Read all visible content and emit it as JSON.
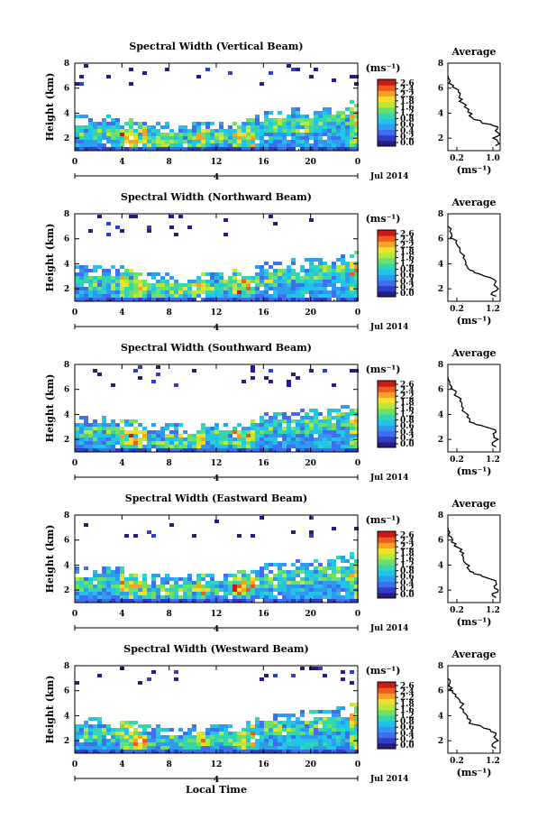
{
  "figure": {
    "panels": [
      {
        "title": "Spectral Width (Vertical Beam)",
        "avg_ticks": [
          "0.2",
          "1.0"
        ],
        "seed": 11
      },
      {
        "title": "Spectral Width (Northward Beam)",
        "avg_ticks": [
          "0.2",
          "1.2"
        ],
        "seed": 23
      },
      {
        "title": "Spectral Width (Southward Beam)",
        "avg_ticks": [
          "0.2",
          "1.2"
        ],
        "seed": 37
      },
      {
        "title": "Spectral Width (Eastward Beam)",
        "avg_ticks": [
          "0.2",
          "1.2"
        ],
        "seed": 41
      },
      {
        "title": "Spectral Width (Westward Beam)",
        "avg_ticks": [
          "0.2",
          "1.2"
        ],
        "seed": 53
      }
    ],
    "ylabel": "Height (km)",
    "y_ticks": [
      "2",
      "4",
      "6",
      "8"
    ],
    "x_ticks": [
      "0",
      "4",
      "8",
      "12",
      "16",
      "20",
      "0"
    ],
    "day_label": "4",
    "date_label": "Jul 2014",
    "xlabel": "Local Time",
    "cbar_unit": "(ms⁻¹)",
    "cbar_ticks": [
      "2.6",
      "2.4",
      "2.2",
      "1.8",
      "1.6",
      "1.2",
      "0.8",
      "0.6",
      "0.4",
      "0.2",
      "0.0"
    ],
    "avg_title": "Average",
    "avg_xlabel": "(ms⁻¹)",
    "avg_y_ticks": [
      "2",
      "4",
      "6",
      "8"
    ],
    "colors": {
      "colormap": [
        "#2a1b80",
        "#2f3fc8",
        "#3f6ef0",
        "#2f9bf0",
        "#1fc4e8",
        "#34d6b0",
        "#6ee06a",
        "#b8e83a",
        "#f2e02c",
        "#f7a225",
        "#ef5a1e",
        "#c81a16"
      ]
    }
  },
  "chart_data": [
    {
      "type": "heatmap",
      "title": "Spectral Width (Vertical Beam)",
      "xlabel": "",
      "ylabel": "Height (km)",
      "xlim": [
        0,
        24
      ],
      "ylim": [
        1,
        8
      ],
      "zlim": [
        0.0,
        2.8
      ],
      "zunit": "(ms⁻¹)",
      "echo_top_km": [
        3.5,
        3.4,
        3.6,
        3.4,
        3.2,
        3.1,
        2.9,
        2.9,
        2.8,
        2.9,
        3.0,
        3.1,
        3.1,
        3.2,
        3.3,
        3.5,
        3.9,
        4.0,
        4.1,
        4.0,
        4.3,
        4.2,
        4.5,
        4.6
      ]
    },
    {
      "type": "line",
      "title": "Average",
      "xlabel": "(ms⁻¹)",
      "x": [
        1.0,
        1.05,
        0.95,
        1.1,
        1.0,
        1.05,
        0.9,
        0.7,
        0.55,
        0.45,
        0.42,
        0.35,
        0.32,
        0.3,
        0.25,
        0.22,
        0.15,
        0.12,
        0.05,
        0.0
      ],
      "y": [
        1.4,
        1.7,
        2.0,
        2.3,
        2.6,
        2.9,
        3.1,
        3.3,
        3.5,
        3.8,
        4.1,
        4.5,
        4.8,
        5.1,
        5.4,
        5.7,
        6.0,
        6.2,
        6.6,
        7.0
      ],
      "xlim": [
        0,
        1.1
      ],
      "ylim": [
        1,
        8
      ]
    },
    {
      "type": "heatmap",
      "title": "Spectral Width (Northward Beam)",
      "xlabel": "",
      "ylabel": "Height (km)",
      "xlim": [
        0,
        24
      ],
      "ylim": [
        1,
        8
      ],
      "zlim": [
        0.0,
        2.8
      ],
      "zunit": "(ms⁻¹)",
      "echo_top_km": [
        3.6,
        3.5,
        3.6,
        3.5,
        3.3,
        3.1,
        2.9,
        2.9,
        2.8,
        2.8,
        3.0,
        3.0,
        3.1,
        3.2,
        3.3,
        3.6,
        3.8,
        4.0,
        4.1,
        4.1,
        4.2,
        4.3,
        4.4,
        4.6
      ]
    },
    {
      "type": "line",
      "title": "Average",
      "xlabel": "(ms⁻¹)",
      "x": [
        1.2,
        1.1,
        1.25,
        1.15,
        1.2,
        1.05,
        0.85,
        0.65,
        0.55,
        0.48,
        0.45,
        0.38,
        0.35,
        0.3,
        0.25,
        0.2,
        0.12,
        0.1,
        0.05,
        0.0
      ],
      "y": [
        1.4,
        1.7,
        2.0,
        2.3,
        2.6,
        2.9,
        3.1,
        3.3,
        3.5,
        3.8,
        4.1,
        4.5,
        4.8,
        5.1,
        5.4,
        5.7,
        6.0,
        6.2,
        6.6,
        7.0
      ],
      "xlim": [
        0,
        1.3
      ],
      "ylim": [
        1,
        8
      ]
    },
    {
      "type": "heatmap",
      "title": "Spectral Width (Southward Beam)",
      "xlabel": "",
      "ylabel": "Height (km)",
      "xlim": [
        0,
        24
      ],
      "ylim": [
        1,
        8
      ],
      "zlim": [
        0.0,
        2.8
      ],
      "zunit": "(ms⁻¹)",
      "echo_top_km": [
        3.6,
        3.4,
        3.6,
        3.4,
        3.2,
        3.1,
        3.0,
        2.9,
        2.9,
        2.8,
        3.0,
        3.1,
        3.1,
        3.2,
        3.3,
        3.6,
        3.9,
        4.0,
        4.0,
        4.1,
        4.2,
        4.3,
        4.5,
        4.5
      ]
    },
    {
      "type": "line",
      "title": "Average",
      "xlabel": "(ms⁻¹)",
      "x": [
        1.2,
        1.1,
        1.25,
        1.15,
        1.2,
        1.05,
        0.85,
        0.65,
        0.55,
        0.48,
        0.45,
        0.38,
        0.35,
        0.3,
        0.25,
        0.2,
        0.12,
        0.1,
        0.05,
        0.0
      ],
      "y": [
        1.4,
        1.7,
        2.0,
        2.3,
        2.6,
        2.9,
        3.1,
        3.3,
        3.5,
        3.8,
        4.1,
        4.5,
        4.8,
        5.1,
        5.4,
        5.7,
        6.0,
        6.2,
        6.6,
        7.0
      ],
      "xlim": [
        0,
        1.3
      ],
      "ylim": [
        1,
        8
      ]
    },
    {
      "type": "heatmap",
      "title": "Spectral Width (Eastward Beam)",
      "xlabel": "",
      "ylabel": "Height (km)",
      "xlim": [
        0,
        24
      ],
      "ylim": [
        1,
        8
      ],
      "zlim": [
        0.0,
        2.8
      ],
      "zunit": "(ms⁻¹)",
      "echo_top_km": [
        3.5,
        3.4,
        3.6,
        3.5,
        3.3,
        3.1,
        2.9,
        2.9,
        2.8,
        2.9,
        3.0,
        3.1,
        3.1,
        3.2,
        3.4,
        3.6,
        3.8,
        4.0,
        4.1,
        4.0,
        4.3,
        4.3,
        4.4,
        4.6
      ]
    },
    {
      "type": "line",
      "title": "Average",
      "xlabel": "(ms⁻¹)",
      "x": [
        1.2,
        1.1,
        1.25,
        1.15,
        1.2,
        1.05,
        0.85,
        0.65,
        0.55,
        0.48,
        0.45,
        0.38,
        0.35,
        0.3,
        0.25,
        0.2,
        0.12,
        0.1,
        0.05,
        0.0
      ],
      "y": [
        1.4,
        1.7,
        2.0,
        2.3,
        2.6,
        2.9,
        3.1,
        3.3,
        3.5,
        3.8,
        4.1,
        4.5,
        4.8,
        5.1,
        5.4,
        5.7,
        6.0,
        6.2,
        6.6,
        7.0
      ],
      "xlim": [
        0,
        1.3
      ],
      "ylim": [
        1,
        8
      ]
    },
    {
      "type": "heatmap",
      "title": "Spectral Width (Westward Beam)",
      "xlabel": "Local Time",
      "ylabel": "Height (km)",
      "xlim": [
        0,
        24
      ],
      "ylim": [
        1,
        8
      ],
      "zlim": [
        0.0,
        2.8
      ],
      "zunit": "(ms⁻¹)",
      "echo_top_km": [
        3.6,
        3.5,
        3.6,
        3.4,
        3.2,
        3.1,
        3.0,
        2.9,
        2.8,
        2.9,
        3.0,
        3.0,
        3.1,
        3.2,
        3.3,
        3.6,
        3.9,
        4.0,
        4.1,
        4.1,
        4.2,
        4.3,
        4.4,
        4.6
      ]
    },
    {
      "type": "line",
      "title": "Average",
      "xlabel": "(ms⁻¹)",
      "x": [
        1.2,
        1.1,
        1.25,
        1.15,
        1.2,
        1.05,
        0.85,
        0.65,
        0.55,
        0.48,
        0.45,
        0.38,
        0.35,
        0.3,
        0.25,
        0.2,
        0.12,
        0.1,
        0.05,
        0.0
      ],
      "y": [
        1.4,
        1.7,
        2.0,
        2.3,
        2.6,
        2.9,
        3.1,
        3.3,
        3.5,
        3.8,
        4.1,
        4.5,
        4.8,
        5.1,
        5.4,
        5.7,
        6.0,
        6.2,
        6.6,
        7.0
      ],
      "xlim": [
        0,
        1.3
      ],
      "ylim": [
        1,
        8
      ]
    }
  ]
}
